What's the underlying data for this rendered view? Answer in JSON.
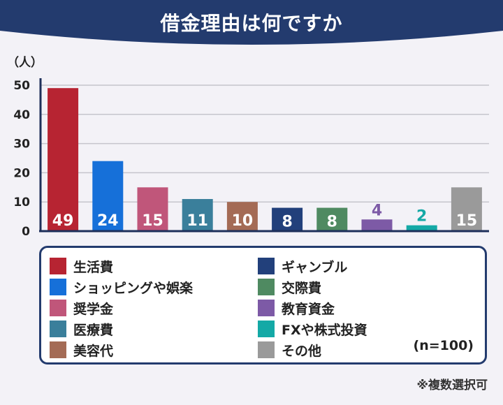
{
  "title": "借金理由は何ですか",
  "colors": {
    "banner": "#233b6e",
    "axis": "#1d2f5a",
    "grid": "#c5c5cc",
    "text": "#222222"
  },
  "chart_data": {
    "type": "bar",
    "title": "借金理由は何ですか",
    "ylabel": "（人）",
    "xlabel": "",
    "ylim": [
      0,
      50
    ],
    "yticks": [
      0,
      10,
      20,
      30,
      40,
      50
    ],
    "grid": true,
    "legend_position": "bottom",
    "categories": [
      "生活費",
      "ショッピングや娯楽",
      "奨学金",
      "医療費",
      "美容代",
      "ギャンブル",
      "交際費",
      "教育資金",
      "FXや株式投資",
      "その他"
    ],
    "values": [
      49,
      24,
      15,
      11,
      10,
      8,
      8,
      4,
      2,
      15
    ],
    "bar_colors": [
      "#b72432",
      "#1670d9",
      "#c0567a",
      "#3a7f9b",
      "#a46b55",
      "#22407b",
      "#4f8a61",
      "#7d5aa6",
      "#14a9a6",
      "#9a9a9a"
    ],
    "label_inside": [
      true,
      true,
      true,
      true,
      true,
      true,
      true,
      false,
      false,
      true
    ]
  },
  "legend": {
    "left": [
      {
        "label": "生活費",
        "color": "#b72432"
      },
      {
        "label": "ショッピングや娯楽",
        "color": "#1670d9"
      },
      {
        "label": "奨学金",
        "color": "#c0567a"
      },
      {
        "label": "医療費",
        "color": "#3a7f9b"
      },
      {
        "label": "美容代",
        "color": "#a46b55"
      }
    ],
    "right": [
      {
        "label": "ギャンブル",
        "color": "#22407b"
      },
      {
        "label": "交際費",
        "color": "#4f8a61"
      },
      {
        "label": "教育資金",
        "color": "#7d5aa6"
      },
      {
        "label": "FXや株式投資",
        "color": "#14a9a6"
      },
      {
        "label": "その他",
        "color": "#9a9a9a"
      }
    ],
    "sample_size": "(n=100)"
  },
  "footnote": "※複数選択可"
}
